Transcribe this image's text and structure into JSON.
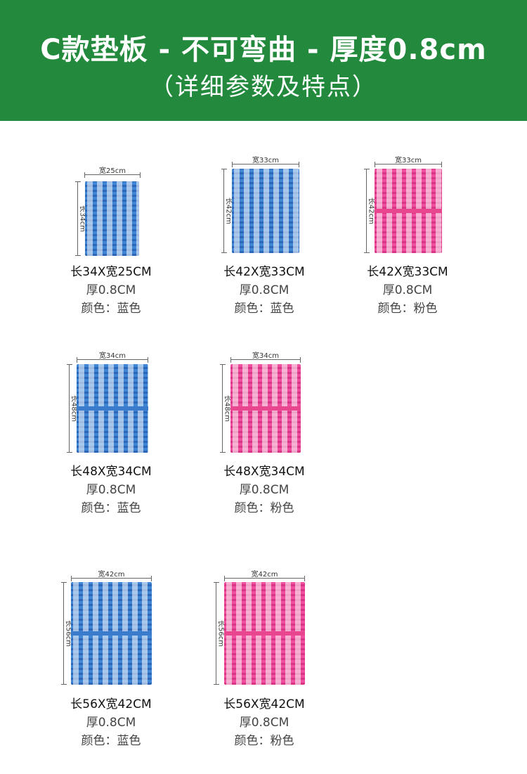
{
  "header": {
    "title": "C款垫板 - 不可弯曲 - 厚度0.8cm",
    "subtitle": "（详细参数及特点）"
  },
  "products": [
    {
      "width_label": "宽25cm",
      "length_label": "长34cm",
      "size": "长34X宽25CM",
      "thickness": "厚0.8CM",
      "color": "颜色：蓝色",
      "board_color": "blue"
    },
    {
      "width_label": "宽33cm",
      "length_label": "长42cm",
      "size": "长42X宽33CM",
      "thickness": "厚0.8CM",
      "color": "颜色：蓝色",
      "board_color": "blue"
    },
    {
      "width_label": "宽33cm",
      "length_label": "长42cm",
      "size": "长42X宽33CM",
      "thickness": "厚0.8CM",
      "color": "颜色：粉色",
      "board_color": "pink"
    },
    {
      "width_label": "宽34cm",
      "length_label": "长48cm",
      "size": "长48X宽34CM",
      "thickness": "厚0.8CM",
      "color": "颜色：蓝色",
      "board_color": "blue"
    },
    {
      "width_label": "宽34cm",
      "length_label": "长48cm",
      "size": "长48X宽34CM",
      "thickness": "厚0.8CM",
      "color": "颜色：粉色",
      "board_color": "pink"
    },
    {
      "width_label": "宽42cm",
      "length_label": "长56cm",
      "size": "长56X宽42CM",
      "thickness": "厚0.8CM",
      "color": "颜色：蓝色",
      "board_color": "blue"
    },
    {
      "width_label": "宽42cm",
      "length_label": "长56cm",
      "size": "长56X宽42CM",
      "thickness": "厚0.8CM",
      "color": "颜色：粉色",
      "board_color": "pink"
    }
  ]
}
